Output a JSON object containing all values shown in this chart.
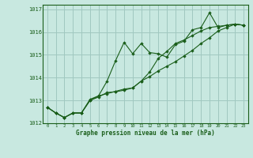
{
  "title": "Graphe pression niveau de la mer (hPa)",
  "bg_color": "#c8e8e0",
  "grid_color": "#a0c8c0",
  "line_color": "#1a5e1a",
  "marker_color": "#1a5e1a",
  "xlim": [
    -0.5,
    23.5
  ],
  "ylim": [
    1012,
    1017.2
  ],
  "yticks": [
    1012,
    1013,
    1014,
    1015,
    1016,
    1017
  ],
  "xticks": [
    0,
    1,
    2,
    3,
    4,
    5,
    6,
    7,
    8,
    9,
    10,
    11,
    12,
    13,
    14,
    15,
    16,
    17,
    18,
    19,
    20,
    21,
    22,
    23
  ],
  "series": [
    [
      1012.7,
      1012.45,
      1012.25,
      1012.45,
      1012.45,
      1013.0,
      1013.2,
      1013.85,
      1014.75,
      1015.55,
      1015.05,
      1015.5,
      1015.1,
      1015.05,
      1014.9,
      1015.45,
      1015.6,
      1016.1,
      1016.2,
      1016.85,
      1016.2,
      1016.3,
      1016.35,
      1016.3
    ],
    [
      1012.7,
      1012.45,
      1012.25,
      1012.45,
      1012.45,
      1013.0,
      1013.15,
      1013.35,
      1013.38,
      1013.45,
      1013.55,
      1013.85,
      1014.25,
      1014.85,
      1015.15,
      1015.5,
      1015.65,
      1015.85,
      1016.05,
      1016.2,
      1016.25,
      1016.3,
      1016.35,
      1016.3
    ],
    [
      1012.7,
      1012.45,
      1012.25,
      1012.45,
      1012.45,
      1013.05,
      1013.2,
      1013.3,
      1013.4,
      1013.5,
      1013.55,
      1013.85,
      1014.05,
      1014.3,
      1014.5,
      1014.7,
      1014.95,
      1015.2,
      1015.5,
      1015.75,
      1016.05,
      1016.2,
      1016.35,
      1016.3
    ]
  ]
}
